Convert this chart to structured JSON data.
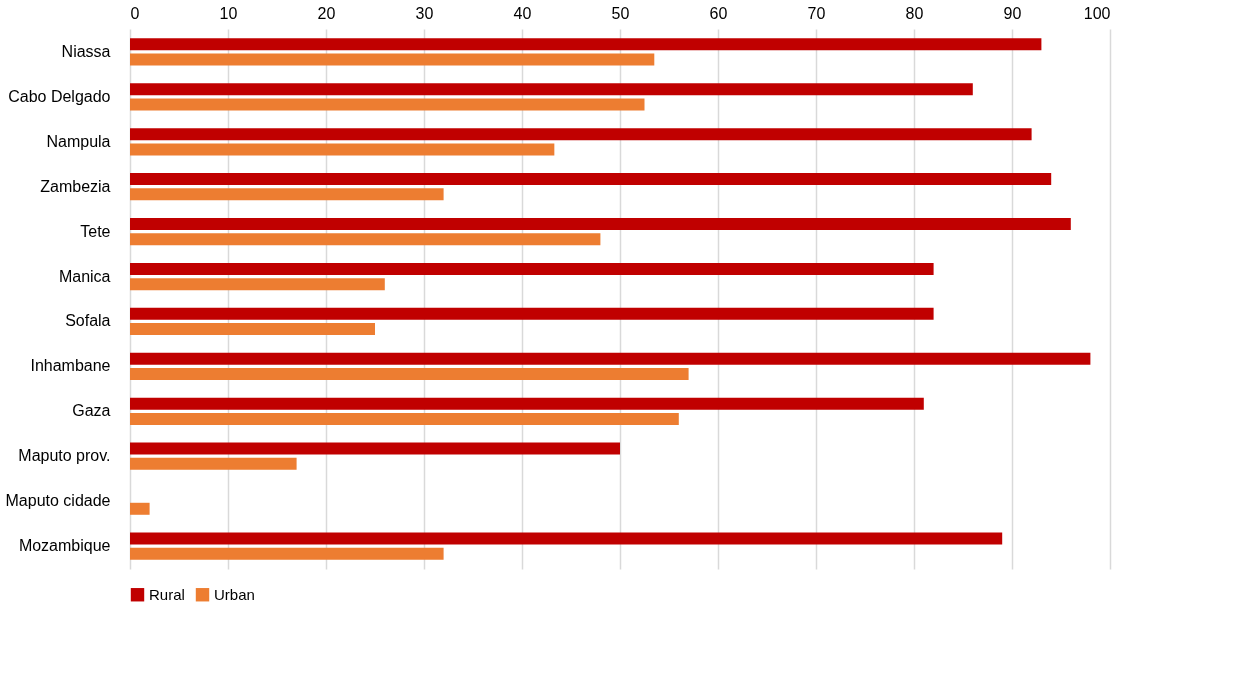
{
  "chart_data": {
    "type": "bar",
    "orientation": "horizontal",
    "categories": [
      "Niassa",
      "Cabo Delgado",
      "Nampula",
      "Zambezia",
      "Tete",
      "Manica",
      "Sofala",
      "Inhambane",
      "Gaza",
      "Maputo prov.",
      "Maputo cidade",
      "Mozambique"
    ],
    "series": [
      {
        "name": "Rural",
        "color": "#c00000",
        "values": [
          93,
          86,
          92,
          94,
          96,
          82,
          82,
          98,
          81,
          50,
          null,
          89
        ]
      },
      {
        "name": "Urban",
        "color": "#ed7d31",
        "values": [
          53.5,
          52.5,
          43.3,
          32,
          48,
          26,
          25,
          57,
          56,
          17,
          2,
          32
        ]
      }
    ],
    "xlim": [
      0,
      100
    ],
    "xticks": [
      0,
      10,
      20,
      30,
      40,
      50,
      60,
      70,
      80,
      90,
      100
    ],
    "grid": "x",
    "legend": "bottom"
  }
}
